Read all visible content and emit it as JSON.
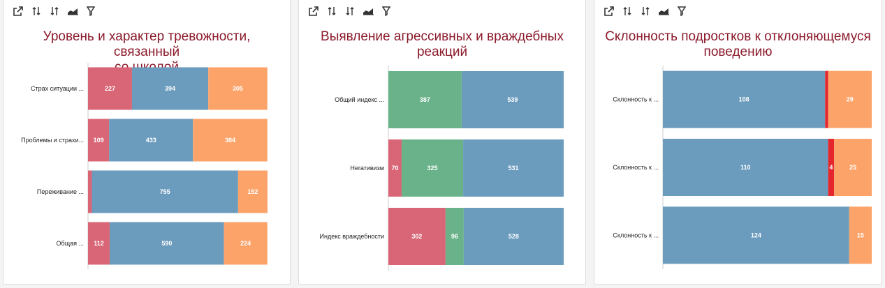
{
  "toolbar": {
    "icons": [
      "open-external-icon",
      "sort-ascending-icon",
      "sort-descending-icon",
      "area-chart-icon",
      "filter-icon"
    ]
  },
  "colors": {
    "red": "#d96676",
    "blue": "#6b9bbd",
    "orange": "#fca36a",
    "green": "#6ab38a",
    "bright_red": "#e5262d",
    "title": "#8b1a2b"
  },
  "chart_data": [
    {
      "type": "bar",
      "orientation": "horizontal",
      "stacked": true,
      "title": "Уровень и характер тревожности, связанный\nсо школой",
      "categories": [
        "Страх ситуации ...",
        "Проблемы и страхи...",
        "Переживание ...",
        "Общая ..."
      ],
      "series": [
        {
          "color": "red",
          "values": [
            227,
            109,
            20,
            112
          ],
          "labels": [
            "227",
            "109",
            "",
            "112"
          ]
        },
        {
          "color": "blue",
          "values": [
            394,
            433,
            755,
            590
          ],
          "labels": [
            "394",
            "433",
            "755",
            "590"
          ]
        },
        {
          "color": "orange",
          "values": [
            305,
            384,
            152,
            224
          ],
          "labels": [
            "305",
            "384",
            "152",
            "224"
          ]
        }
      ]
    },
    {
      "type": "bar",
      "orientation": "horizontal",
      "stacked": true,
      "title": "Выявление агрессивных и враждебных\nреакций",
      "categories": [
        "Общий индекс ...",
        "Негативизм",
        "Индекс враждебности"
      ],
      "series": [
        {
          "color": "red",
          "values": [
            0,
            70,
            302
          ],
          "labels": [
            "",
            "70",
            "302"
          ]
        },
        {
          "color": "green",
          "values": [
            387,
            325,
            96
          ],
          "labels": [
            "387",
            "325",
            "96"
          ]
        },
        {
          "color": "blue",
          "values": [
            539,
            531,
            528
          ],
          "labels": [
            "539",
            "531",
            "528"
          ]
        }
      ]
    },
    {
      "type": "bar",
      "orientation": "horizontal",
      "stacked": true,
      "title": "Склонность подростков к отклоняющемуся\nповедению",
      "categories": [
        "Склонность к ...",
        "Склонность к ...",
        "Склонность к ..."
      ],
      "series": [
        {
          "color": "blue",
          "values": [
            108,
            110,
            124
          ],
          "labels": [
            "108",
            "110",
            "124"
          ]
        },
        {
          "color": "bright_red",
          "values": [
            2,
            4,
            0
          ],
          "labels": [
            "",
            "4",
            ""
          ]
        },
        {
          "color": "orange",
          "values": [
            29,
            25,
            15
          ],
          "labels": [
            "29",
            "25",
            "15"
          ]
        }
      ]
    }
  ]
}
